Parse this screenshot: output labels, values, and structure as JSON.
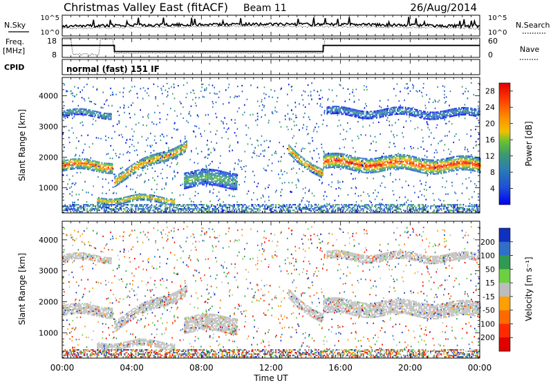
{
  "header": {
    "title_left": "Christmas Valley East (fitACF)",
    "title_center": "Beam 11",
    "title_date": "26/Aug/2014"
  },
  "strips": {
    "nsky": {
      "label": "N.Sky",
      "ticks": [
        "10^5",
        "10^0"
      ]
    },
    "nsearch": {
      "label": "N.Search",
      "ticks": [
        "10^5",
        "10^0"
      ]
    },
    "freq": {
      "label": "Freq.",
      "unit": "[MHz]",
      "ticks": [
        "18",
        "8"
      ]
    },
    "nave": {
      "label": "Nave",
      "ticks": [
        "60",
        "0"
      ]
    },
    "cpid": {
      "label": "CPID",
      "value": "normal (fast) 151 IF"
    }
  },
  "xaxis": {
    "label": "Time UT",
    "ticks": [
      "00:00",
      "04:00",
      "08:00",
      "12:00",
      "16:00",
      "20:00",
      "00:00"
    ],
    "range_hours": [
      0,
      24
    ]
  },
  "power_panel": {
    "ylabel": "Slant Range [km]",
    "yticks": [
      "1000",
      "2000",
      "3000",
      "4000"
    ],
    "ylim": [
      180,
      4600
    ],
    "colorbar": {
      "label": "Power [dB]",
      "ticks": [
        "4",
        "8",
        "12",
        "16",
        "20",
        "24",
        "28"
      ],
      "range": [
        0,
        30
      ],
      "colors": [
        "#0000ee",
        "#1c4fd8",
        "#2d7fb0",
        "#3d9c6c",
        "#66c230",
        "#f0c000",
        "#ff8c00",
        "#ff3c00",
        "#e00000"
      ]
    }
  },
  "velocity_panel": {
    "ylabel": "Slant Range [km]",
    "yticks": [
      "1000",
      "2000",
      "3000",
      "4000"
    ],
    "ylim": [
      180,
      4600
    ],
    "colorbar": {
      "label": "Velocity [m s⁻¹]",
      "ticks": [
        "200",
        "100",
        "50",
        "15",
        "-15",
        "-50",
        "-100",
        "-200"
      ],
      "colors": [
        "#1030c0",
        "#2f6fc8",
        "#2f9a50",
        "#6cd040",
        "#bdbdbd",
        "#ffa000",
        "#ff6a00",
        "#ff2a00",
        "#e00000"
      ]
    }
  },
  "chart_data": {
    "type": "heatmap",
    "title": "Christmas Valley East (fitACF)",
    "x_unit": "hours UT",
    "y_unit": "km",
    "frequency_MHz": [
      {
        "from": 0.0,
        "to": 3.0,
        "value": 14.5
      },
      {
        "from": 3.0,
        "to": 15.0,
        "value": 10.5
      },
      {
        "from": 15.0,
        "to": 24.0,
        "value": 14.5
      }
    ],
    "power_bands": [
      {
        "from": 0.0,
        "to": 2.9,
        "range_start": 1750,
        "range_end": 1750,
        "width": 350,
        "peak_dB": 26
      },
      {
        "from": 3.0,
        "to": 7.2,
        "range_start": 1300,
        "range_end": 2450,
        "width": 320,
        "peak_dB": 24
      },
      {
        "from": 13.0,
        "to": 15.0,
        "range_start": 2300,
        "range_end": 1450,
        "width": 300,
        "peak_dB": 24
      },
      {
        "from": 15.0,
        "to": 24.0,
        "range_start": 1850,
        "range_end": 1750,
        "width": 450,
        "peak_dB": 27
      },
      {
        "from": 0.0,
        "to": 2.8,
        "range_start": 3450,
        "range_end": 3450,
        "width": 220,
        "peak_dB": 12
      },
      {
        "from": 15.2,
        "to": 24.0,
        "range_start": 3500,
        "range_end": 3450,
        "width": 250,
        "peak_dB": 10
      },
      {
        "from": 7.0,
        "to": 10.0,
        "range_start": 1300,
        "range_end": 1300,
        "width": 500,
        "peak_dB": 14
      },
      {
        "from": 2.0,
        "to": 6.5,
        "range_start": 650,
        "range_end": 650,
        "width": 200,
        "peak_dB": 22
      }
    ]
  }
}
